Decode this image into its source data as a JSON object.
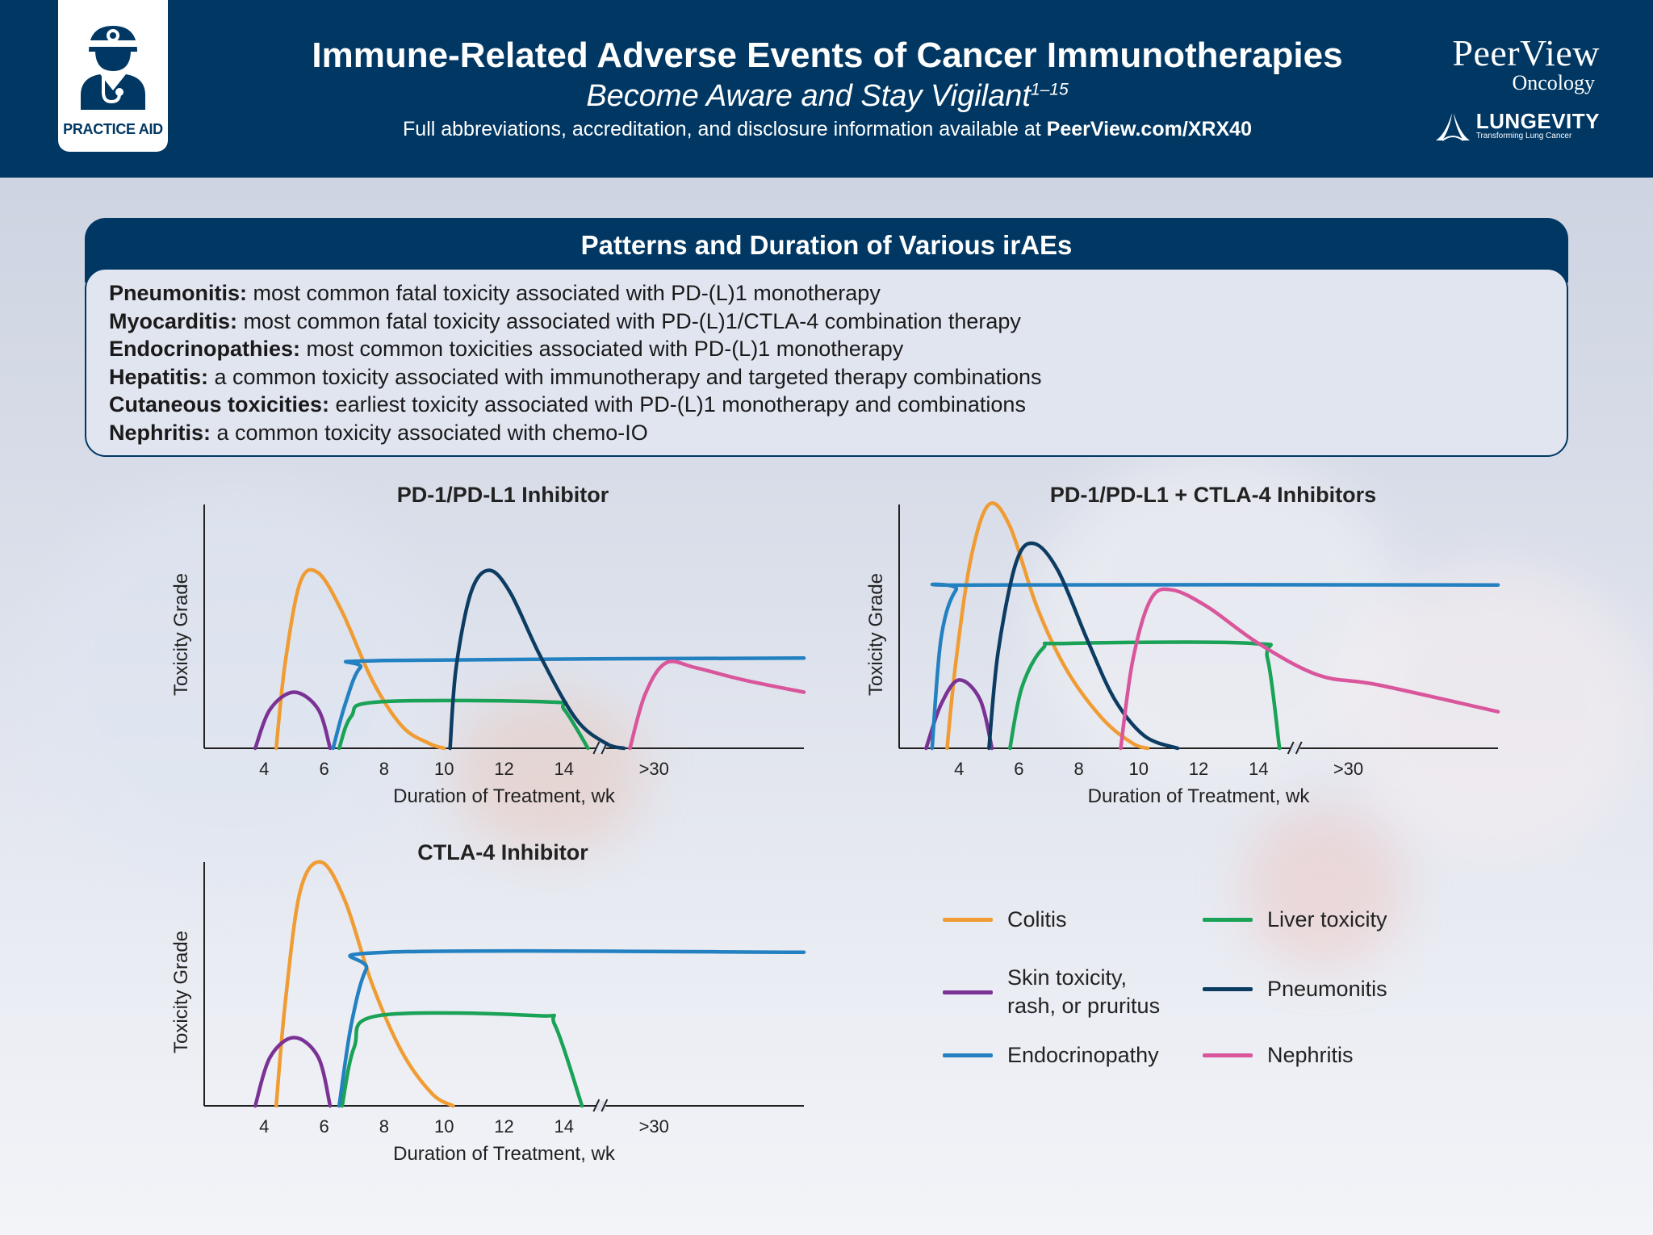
{
  "header": {
    "badge_label": "PRACTICE AID",
    "title": "Immune-Related Adverse Events of Cancer Immunotherapies",
    "subtitle": "Become Aware and Stay Vigilant",
    "subtitle_refs": "1–15",
    "info_text": "Full abbreviations, accreditation, and disclosure information available at ",
    "info_link": "PeerView.com/XRX40",
    "logo_name": "PeerView",
    "logo_sub": "Oncology",
    "partner_name": "LUNGEVITY",
    "partner_tagline": "Transforming Lung Cancer"
  },
  "patterns": {
    "title": "Patterns and Duration of Various irAEs",
    "items": [
      {
        "term": "Pneumonitis:",
        "desc": " most common fatal toxicity associated with PD-(L)1 monotherapy"
      },
      {
        "term": "Myocarditis:",
        "desc": " most common fatal toxicity associated with PD-(L)1/CTLA-4 combination therapy"
      },
      {
        "term": "Endocrinopathies:",
        "desc": " most common toxicities associated with PD-(L)1 monotherapy"
      },
      {
        "term": "Hepatitis:",
        "desc": " a common toxicity associated with immunotherapy and targeted therapy combinations"
      },
      {
        "term": "Cutaneous toxicities:",
        "desc": " earliest toxicity associated with PD-(L)1 monotherapy and combinations"
      },
      {
        "term": "Nephritis:",
        "desc": " a common toxicity associated with chemo-IO"
      }
    ]
  },
  "colors": {
    "colitis": "#f09c34",
    "skin": "#7b3294",
    "endocrinopathy": "#2481c1",
    "liver": "#1aa257",
    "pneumonitis": "#0d3c63",
    "nephritis": "#d9569c"
  },
  "legend": [
    {
      "key": "colitis",
      "label": "Colitis"
    },
    {
      "key": "liver",
      "label": "Liver toxicity"
    },
    {
      "key": "skin",
      "label": "Skin toxicity,\nrash, or pruritus"
    },
    {
      "key": "pneumonitis",
      "label": "Pneumonitis"
    },
    {
      "key": "endocrinopathy",
      "label": "Endocrinopathy"
    },
    {
      "key": "nephritis",
      "label": "Nephritis"
    }
  ],
  "chart_data": [
    {
      "type": "line",
      "title": "PD-1/PD-L1 Inhibitor",
      "xlabel": "Duration of Treatment, wk",
      "ylabel": "Toxicity Grade",
      "x_ticks": [
        "4",
        "6",
        "8",
        "10",
        "12",
        "14",
        ">30"
      ],
      "axis_break": true,
      "xlim": [
        2,
        22
      ],
      "ylim": [
        0,
        10
      ],
      "series": [
        {
          "name": "Colitis",
          "key": "colitis",
          "points": [
            [
              4.4,
              0
            ],
            [
              4.7,
              3.5
            ],
            [
              5.2,
              6.8
            ],
            [
              5.8,
              7.2
            ],
            [
              6.6,
              5.6
            ],
            [
              7.6,
              2.8
            ],
            [
              8.6,
              0.9
            ],
            [
              9.5,
              0.2
            ],
            [
              10,
              0
            ]
          ]
        },
        {
          "name": "Skin toxicity, rash, or pruritus",
          "key": "skin",
          "points": [
            [
              3.7,
              0
            ],
            [
              4.2,
              1.6
            ],
            [
              5,
              2.3
            ],
            [
              5.8,
              1.6
            ],
            [
              6.2,
              0
            ]
          ]
        },
        {
          "name": "Endocrinopathy",
          "key": "endocrinopathy",
          "points": [
            [
              6.3,
              0
            ],
            [
              6.7,
              1.8
            ],
            [
              7.2,
              3.3
            ],
            [
              8,
              3.6
            ],
            [
              22,
              3.7
            ]
          ]
        },
        {
          "name": "Liver toxicity",
          "key": "liver",
          "points": [
            [
              6.5,
              0
            ],
            [
              6.9,
              1.3
            ],
            [
              7.8,
              1.9
            ],
            [
              13.5,
              1.9
            ],
            [
              14,
              1.6
            ],
            [
              14.8,
              0
            ]
          ]
        },
        {
          "name": "Pneumonitis",
          "key": "pneumonitis",
          "points": [
            [
              10.2,
              0
            ],
            [
              10.4,
              3.3
            ],
            [
              10.9,
              6.4
            ],
            [
              11.5,
              7.3
            ],
            [
              12.2,
              6.4
            ],
            [
              13.2,
              3.8
            ],
            [
              14.4,
              1.2
            ],
            [
              15.4,
              0.2
            ],
            [
              16,
              0
            ]
          ]
        },
        {
          "name": "Nephritis",
          "key": "nephritis",
          "points": [
            [
              16.2,
              0
            ],
            [
              16.7,
              2.2
            ],
            [
              17.4,
              3.5
            ],
            [
              18.4,
              3.3
            ],
            [
              20,
              2.8
            ],
            [
              22,
              2.3
            ]
          ]
        }
      ]
    },
    {
      "type": "line",
      "title": "PD-1/PD-L1 + CTLA-4 Inhibitors",
      "xlabel": "Duration of Treatment, wk",
      "ylabel": "Toxicity Grade",
      "x_ticks": [
        "4",
        "6",
        "8",
        "10",
        "12",
        "14",
        ">30"
      ],
      "axis_break": true,
      "xlim": [
        2,
        22
      ],
      "ylim": [
        0,
        10
      ],
      "series": [
        {
          "name": "Colitis",
          "key": "colitis",
          "points": [
            [
              3.6,
              0
            ],
            [
              3.9,
              3.6
            ],
            [
              4.4,
              7.8
            ],
            [
              5,
              10
            ],
            [
              5.7,
              9.1
            ],
            [
              6.6,
              5.8
            ],
            [
              7.6,
              3.2
            ],
            [
              8.8,
              1.2
            ],
            [
              9.8,
              0.2
            ],
            [
              10.3,
              0
            ]
          ]
        },
        {
          "name": "Skin toxicity, rash, or pruritus",
          "key": "skin",
          "points": [
            [
              2.9,
              0
            ],
            [
              3.4,
              1.8
            ],
            [
              4,
              2.8
            ],
            [
              4.7,
              2
            ],
            [
              5.1,
              0
            ]
          ]
        },
        {
          "name": "Endocrinopathy",
          "key": "endocrinopathy",
          "points": [
            [
              3.1,
              0
            ],
            [
              3.4,
              4.5
            ],
            [
              3.9,
              6.5
            ],
            [
              4.6,
              6.7
            ],
            [
              22,
              6.7
            ]
          ]
        },
        {
          "name": "Liver toxicity",
          "key": "liver",
          "points": [
            [
              5.7,
              0
            ],
            [
              6.1,
              2.5
            ],
            [
              6.8,
              4.1
            ],
            [
              7.6,
              4.3
            ],
            [
              13.8,
              4.3
            ],
            [
              14.3,
              3.7
            ],
            [
              14.7,
              0
            ]
          ]
        },
        {
          "name": "Pneumonitis",
          "key": "pneumonitis",
          "points": [
            [
              5,
              0
            ],
            [
              5.3,
              3.9
            ],
            [
              5.9,
              7.6
            ],
            [
              6.5,
              8.4
            ],
            [
              7.3,
              7.3
            ],
            [
              8.3,
              4.4
            ],
            [
              9.2,
              2
            ],
            [
              10.2,
              0.5
            ],
            [
              11.3,
              0
            ]
          ]
        },
        {
          "name": "Nephritis",
          "key": "nephritis",
          "points": [
            [
              9.4,
              0
            ],
            [
              9.8,
              3.6
            ],
            [
              10.4,
              6.1
            ],
            [
              11.1,
              6.5
            ],
            [
              12.3,
              5.8
            ],
            [
              14,
              4.3
            ],
            [
              16,
              3
            ],
            [
              18,
              2.6
            ],
            [
              22,
              1.5
            ]
          ]
        }
      ]
    },
    {
      "type": "line",
      "title": "CTLA-4 Inhibitor",
      "xlabel": "Duration of Treatment, wk",
      "ylabel": "Toxicity Grade",
      "x_ticks": [
        "4",
        "6",
        "8",
        "10",
        "12",
        "14",
        ">30"
      ],
      "axis_break": true,
      "xlim": [
        2,
        22
      ],
      "ylim": [
        0,
        10
      ],
      "series": [
        {
          "name": "Colitis",
          "key": "colitis",
          "points": [
            [
              4.4,
              0
            ],
            [
              4.7,
              4.2
            ],
            [
              5.2,
              8.8
            ],
            [
              5.9,
              10
            ],
            [
              6.7,
              8.4
            ],
            [
              7.6,
              5
            ],
            [
              8.6,
              2.2
            ],
            [
              9.6,
              0.5
            ],
            [
              10.3,
              0
            ]
          ]
        },
        {
          "name": "Skin toxicity, rash, or pruritus",
          "key": "skin",
          "points": [
            [
              3.7,
              0
            ],
            [
              4.2,
              2
            ],
            [
              5,
              2.8
            ],
            [
              5.8,
              2
            ],
            [
              6.2,
              0
            ]
          ]
        },
        {
          "name": "Endocrinopathy",
          "key": "endocrinopathy",
          "points": [
            [
              6.5,
              0
            ],
            [
              6.9,
              3.3
            ],
            [
              7.4,
              5.6
            ],
            [
              8.1,
              6.3
            ],
            [
              22,
              6.3
            ]
          ]
        },
        {
          "name": "Liver toxicity",
          "key": "liver",
          "points": [
            [
              6.6,
              0
            ],
            [
              7,
              2.4
            ],
            [
              7.8,
              3.7
            ],
            [
              13.1,
              3.7
            ],
            [
              13.7,
              3.3
            ],
            [
              14.6,
              0
            ]
          ]
        }
      ]
    }
  ]
}
